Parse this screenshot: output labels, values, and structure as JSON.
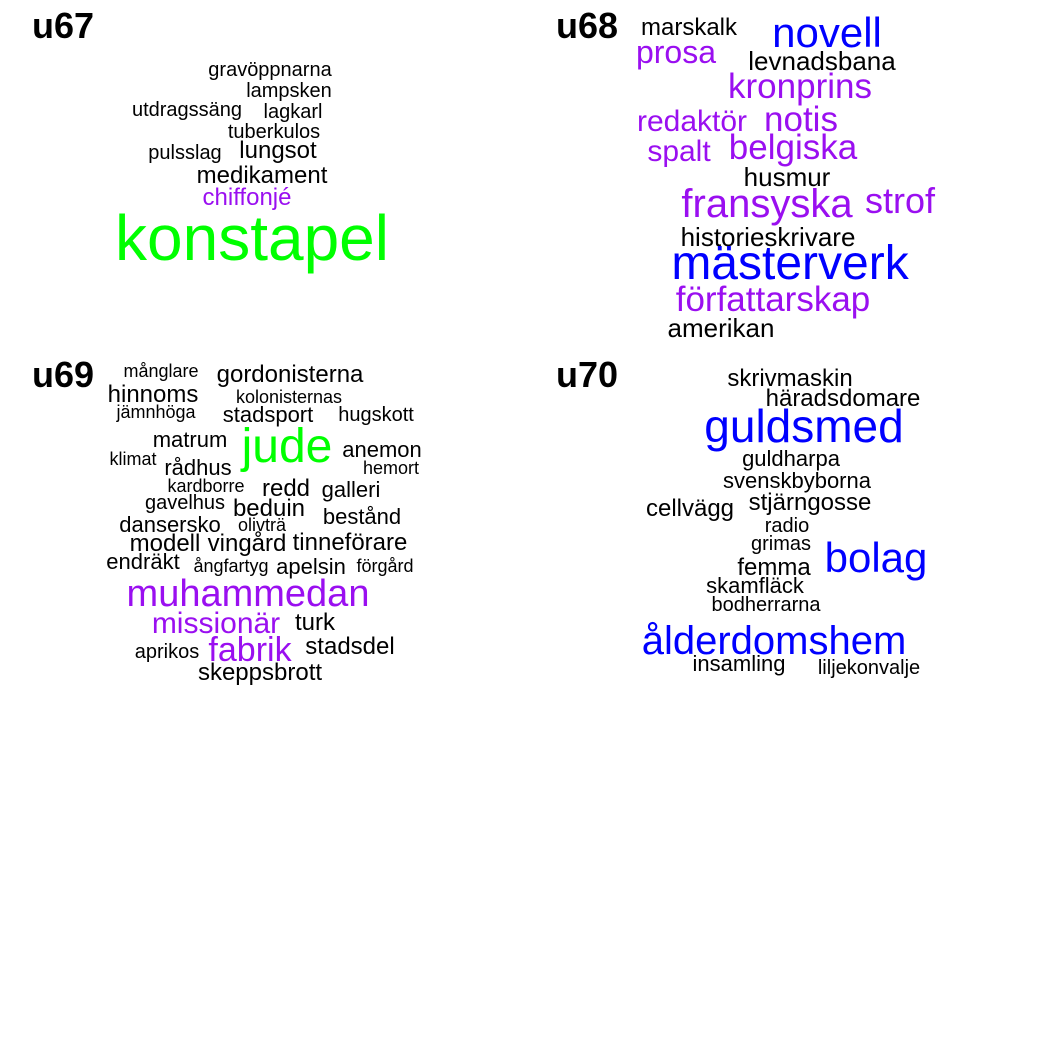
{
  "panels": [
    {
      "title": "u67",
      "words": [
        {
          "text": "gravöppnarna",
          "color": "black"
        },
        {
          "text": "lampsken",
          "color": "black"
        },
        {
          "text": "utdragssäng",
          "color": "black"
        },
        {
          "text": "lagkarl",
          "color": "black"
        },
        {
          "text": "tuberkulos",
          "color": "black"
        },
        {
          "text": "pulsslag",
          "color": "black"
        },
        {
          "text": "lungsot",
          "color": "black"
        },
        {
          "text": "medikament",
          "color": "black"
        },
        {
          "text": "chiffonjé",
          "color": "purple"
        },
        {
          "text": "konstapel",
          "color": "green"
        }
      ]
    },
    {
      "title": "u68",
      "words": [
        {
          "text": "marskalk",
          "color": "black"
        },
        {
          "text": "novell",
          "color": "blue"
        },
        {
          "text": "prosa",
          "color": "purple"
        },
        {
          "text": "levnadsbana",
          "color": "black"
        },
        {
          "text": "kronprins",
          "color": "purple"
        },
        {
          "text": "redaktör",
          "color": "purple"
        },
        {
          "text": "notis",
          "color": "purple"
        },
        {
          "text": "belgiska",
          "color": "purple"
        },
        {
          "text": "spalt",
          "color": "purple"
        },
        {
          "text": "husmur",
          "color": "black"
        },
        {
          "text": "fransyska",
          "color": "purple"
        },
        {
          "text": "strof",
          "color": "purple"
        },
        {
          "text": "historieskrivare",
          "color": "black"
        },
        {
          "text": "mästerverk",
          "color": "blue"
        },
        {
          "text": "författarskap",
          "color": "purple"
        },
        {
          "text": "amerikan",
          "color": "black"
        }
      ]
    },
    {
      "title": "u69",
      "words": [
        {
          "text": "månglare",
          "color": "black"
        },
        {
          "text": "gordonisterna",
          "color": "black"
        },
        {
          "text": "hinnoms",
          "color": "black"
        },
        {
          "text": "kolonisternas",
          "color": "black"
        },
        {
          "text": "jämnhöga",
          "color": "black"
        },
        {
          "text": "stadsport",
          "color": "black"
        },
        {
          "text": "hugskott",
          "color": "black"
        },
        {
          "text": "matrum",
          "color": "black"
        },
        {
          "text": "jude",
          "color": "green"
        },
        {
          "text": "anemon",
          "color": "black"
        },
        {
          "text": "klimat",
          "color": "black"
        },
        {
          "text": "rådhus",
          "color": "black"
        },
        {
          "text": "hemort",
          "color": "black"
        },
        {
          "text": "kardborre",
          "color": "black"
        },
        {
          "text": "redd",
          "color": "black"
        },
        {
          "text": "galleri",
          "color": "black"
        },
        {
          "text": "gavelhus",
          "color": "black"
        },
        {
          "text": "beduin",
          "color": "black"
        },
        {
          "text": "bestånd",
          "color": "black"
        },
        {
          "text": "dansersko",
          "color": "black"
        },
        {
          "text": "olivträ",
          "color": "black"
        },
        {
          "text": "modell",
          "color": "black"
        },
        {
          "text": "vingård",
          "color": "black"
        },
        {
          "text": "tinneförare",
          "color": "black"
        },
        {
          "text": "endräkt",
          "color": "black"
        },
        {
          "text": "ångfartyg",
          "color": "black"
        },
        {
          "text": "apelsin",
          "color": "black"
        },
        {
          "text": "förgård",
          "color": "black"
        },
        {
          "text": "muhammedan",
          "color": "purple"
        },
        {
          "text": "missionär",
          "color": "purple"
        },
        {
          "text": "turk",
          "color": "black"
        },
        {
          "text": "aprikos",
          "color": "black"
        },
        {
          "text": "fabrik",
          "color": "purple"
        },
        {
          "text": "stadsdel",
          "color": "black"
        },
        {
          "text": "skeppsbrott",
          "color": "black"
        }
      ]
    },
    {
      "title": "u70",
      "words": [
        {
          "text": "skrivmaskin",
          "color": "black"
        },
        {
          "text": "häradsdomare",
          "color": "black"
        },
        {
          "text": "guldsmed",
          "color": "blue"
        },
        {
          "text": "guldharpa",
          "color": "black"
        },
        {
          "text": "svenskbyborna",
          "color": "black"
        },
        {
          "text": "cellvägg",
          "color": "black"
        },
        {
          "text": "stjärngosse",
          "color": "black"
        },
        {
          "text": "radio",
          "color": "black"
        },
        {
          "text": "grimas",
          "color": "black"
        },
        {
          "text": "femma",
          "color": "black"
        },
        {
          "text": "bolag",
          "color": "blue"
        },
        {
          "text": "skamfläck",
          "color": "black"
        },
        {
          "text": "bodherrarna",
          "color": "black"
        },
        {
          "text": "ålderdomshem",
          "color": "blue"
        },
        {
          "text": "insamling",
          "color": "black"
        },
        {
          "text": "liljekonvalje",
          "color": "black"
        }
      ]
    }
  ]
}
